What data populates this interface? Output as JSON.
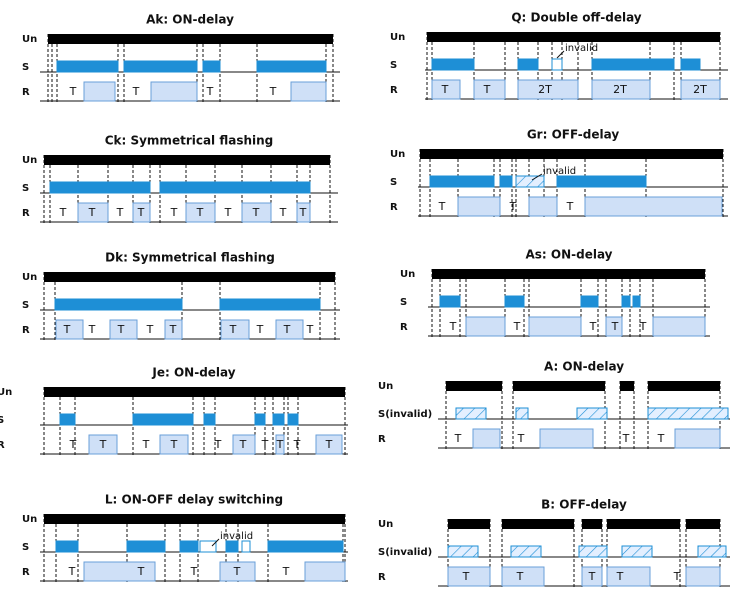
{
  "panels": [
    {
      "title": "Ak: ON-delay",
      "rows": [
        "Un",
        "S",
        "R"
      ],
      "labels": [
        "T",
        "T",
        "T",
        "T"
      ]
    },
    {
      "title": "Ck: Symmetrical flashing",
      "rows": [
        "Un",
        "S",
        "R"
      ],
      "labels": [
        "T",
        "T",
        "T",
        "T",
        "T",
        "T",
        "T",
        "T",
        "T",
        "T"
      ]
    },
    {
      "title": "Dk: Symmetrical flashing",
      "rows": [
        "Un",
        "S",
        "R"
      ],
      "labels": [
        "T",
        "T",
        "T",
        "T",
        "T",
        "T",
        "T",
        "T",
        "T"
      ]
    },
    {
      "title": "Je: ON-delay",
      "rows": [
        "Un",
        "S",
        "R"
      ],
      "labels": [
        "T",
        "T",
        "T",
        "T",
        "T",
        "T",
        "T",
        "T",
        "T",
        "T"
      ]
    },
    {
      "title": "L:  ON-OFF delay switching",
      "rows": [
        "Un",
        "S",
        "R"
      ],
      "labels": [
        "T",
        "T",
        "T",
        "T",
        "T"
      ],
      "note": "invalid"
    },
    {
      "title": "Q: Double off-delay",
      "rows": [
        "Un",
        "S",
        "R"
      ],
      "labels": [
        "T",
        "T",
        "2T",
        "2T",
        "2T"
      ],
      "note": "invalid"
    },
    {
      "title": "Gr: OFF-delay",
      "rows": [
        "Un",
        "S",
        "R"
      ],
      "labels": [
        "T",
        "T",
        "T"
      ],
      "note": "invalid"
    },
    {
      "title": "As: ON-delay",
      "rows": [
        "Un",
        "S",
        "R"
      ],
      "labels": [
        "T",
        "T",
        "T",
        "T",
        "T"
      ]
    },
    {
      "title": "A: ON-delay",
      "rows": [
        "Un",
        "S(invalid)",
        "R"
      ],
      "labels": [
        "T",
        "T",
        "T",
        "T"
      ]
    },
    {
      "title": "B: OFF-delay",
      "rows": [
        "Un",
        "S(invalid)",
        "R"
      ],
      "labels": [
        "T",
        "T",
        "T",
        "T",
        "T"
      ]
    }
  ]
}
